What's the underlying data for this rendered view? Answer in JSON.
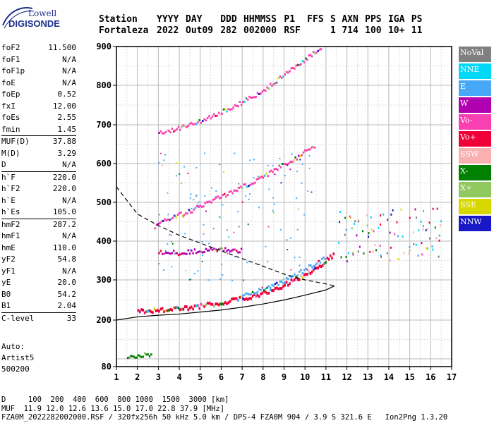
{
  "logo": {
    "line1": "Lowell",
    "line2": "DIGISONDE"
  },
  "header": {
    "labels": [
      "Station",
      "YYYY",
      "DAY",
      "DDD",
      "HHMMSS",
      "P1",
      "FFS",
      "S",
      "AXN",
      "PPS",
      "IGA",
      "PS"
    ],
    "values": [
      "Fortaleza",
      "2022",
      "Out09",
      "282",
      "002000",
      "RSF",
      "",
      "1",
      "714",
      "100",
      "10+",
      "11"
    ]
  },
  "params_groups": [
    [
      [
        "foF2",
        "11.500"
      ],
      [
        "foF1",
        "N/A"
      ],
      [
        "foF1p",
        "N/A"
      ],
      [
        "foE",
        "N/A"
      ],
      [
        "foEp",
        "0.52"
      ],
      [
        "fxI",
        "12.00"
      ],
      [
        "foEs",
        "2.55"
      ],
      [
        "fmin",
        "1.45"
      ]
    ],
    [
      [
        "MUF(D)",
        "37.88"
      ],
      [
        "M(D)",
        "3.29"
      ],
      [
        "D",
        "N/A"
      ]
    ],
    [
      [
        "h`F",
        "220.0"
      ],
      [
        "h`F2",
        "220.0"
      ],
      [
        "h`E",
        "N/A"
      ],
      [
        "h`Es",
        "105.0"
      ]
    ],
    [
      [
        "hmF2",
        "287.2"
      ],
      [
        "hmF1",
        "N/A"
      ],
      [
        "hmE",
        "110.0"
      ],
      [
        "yF2",
        "54.8"
      ],
      [
        "yF1",
        "N/A"
      ],
      [
        "yE",
        "20.0"
      ],
      [
        "B0",
        "54.2"
      ],
      [
        "B1",
        "2.04"
      ]
    ],
    [
      [
        "C-level",
        "33"
      ]
    ]
  ],
  "auto": {
    "line1": "Auto:",
    "line2": "Artist5",
    "line3": "500200"
  },
  "legend": [
    {
      "label": "NoVal",
      "color": "#808080"
    },
    {
      "label": "NNE",
      "color": "#00d8f8"
    },
    {
      "label": "E",
      "color": "#48a8f8"
    },
    {
      "label": "W",
      "color": "#b000b0"
    },
    {
      "label": "Vo-",
      "color": "#f840b0"
    },
    {
      "label": "Vo+",
      "color": "#f00038"
    },
    {
      "label": "SSW",
      "color": "#f8b0b0"
    },
    {
      "label": "X-",
      "color": "#008000"
    },
    {
      "label": "X+",
      "color": "#90c860"
    },
    {
      "label": "SSE",
      "color": "#d8d800"
    },
    {
      "label": "NNW",
      "color": "#1818c8"
    }
  ],
  "chart_data": {
    "type": "scatter",
    "xlim": [
      1,
      17
    ],
    "ylim": [
      80,
      900
    ],
    "x_ticks": [
      1,
      2,
      3,
      4,
      5,
      6,
      7,
      8,
      9,
      10,
      11,
      12,
      13,
      14,
      15,
      16,
      17
    ],
    "y_ticks": [
      80,
      200,
      300,
      400,
      500,
      600,
      700,
      800,
      900
    ],
    "grid": true,
    "traces": [
      {
        "name": "F2 O-trace",
        "color": "#f00038",
        "points": [
          [
            2,
            225
          ],
          [
            3,
            228
          ],
          [
            4,
            232
          ],
          [
            5,
            238
          ],
          [
            6,
            246
          ],
          [
            7,
            257
          ],
          [
            8,
            270
          ],
          [
            9,
            290
          ],
          [
            10,
            318
          ],
          [
            10.8,
            345
          ],
          [
            11.4,
            370
          ]
        ]
      },
      {
        "name": "F2 X-trace",
        "color": "#48a8f8",
        "points": [
          [
            7,
            265
          ],
          [
            8,
            280
          ],
          [
            9,
            300
          ],
          [
            10,
            330
          ],
          [
            11,
            362
          ]
        ]
      },
      {
        "name": "2F multiple",
        "color": "#f840b0",
        "points": [
          [
            2.8,
            440
          ],
          [
            3.5,
            462
          ],
          [
            4.5,
            480
          ],
          [
            5.5,
            505
          ],
          [
            6.5,
            530
          ],
          [
            7.5,
            555
          ],
          [
            8.5,
            585
          ],
          [
            9.5,
            615
          ],
          [
            10.5,
            650
          ]
        ]
      },
      {
        "name": "3F multiple",
        "color": "#f840b0",
        "points": [
          [
            3,
            680
          ],
          [
            4,
            695
          ],
          [
            5,
            712
          ],
          [
            6,
            735
          ],
          [
            7,
            760
          ],
          [
            8,
            790
          ],
          [
            9,
            830
          ],
          [
            10,
            870
          ],
          [
            10.8,
            900
          ]
        ]
      },
      {
        "name": "Es",
        "color": "#008000",
        "points": [
          [
            1.5,
            105
          ],
          [
            2,
            110
          ],
          [
            2.7,
            115
          ]
        ]
      },
      {
        "name": "Es multiple",
        "color": "#b000b0",
        "points": [
          [
            3,
            375
          ],
          [
            4,
            372
          ],
          [
            5,
            378
          ],
          [
            6,
            380
          ],
          [
            7,
            378
          ]
        ]
      }
    ],
    "profile_dashed": [
      [
        1,
        540
      ],
      [
        1.5,
        505
      ],
      [
        2,
        470
      ],
      [
        3,
        440
      ],
      [
        4,
        415
      ],
      [
        5,
        395
      ],
      [
        6,
        375
      ],
      [
        7,
        355
      ],
      [
        8,
        335
      ],
      [
        9,
        315
      ],
      [
        10,
        300
      ],
      [
        11,
        290
      ],
      [
        11.4,
        285
      ]
    ],
    "profile_solid": [
      [
        1,
        200
      ],
      [
        2,
        208
      ],
      [
        3,
        212
      ],
      [
        4,
        215
      ],
      [
        5,
        220
      ],
      [
        6,
        225
      ],
      [
        7,
        232
      ],
      [
        8,
        240
      ],
      [
        9,
        250
      ],
      [
        10,
        262
      ],
      [
        11,
        275
      ],
      [
        11.4,
        285
      ]
    ]
  },
  "footer": {
    "line1": "D     100  200  400  600  800 1000  1500  3000 [km]",
    "line2": "MUF  11.9 12.0 12.6 13.6 15.0 17.0 22.8 37.9 [MHz]",
    "line3": "FZA0M_2022282002000.RSF / 320fx256h 50 kHz 5.0 km / DPS-4 FZA0M 904 / 3.9 S 321.6 E   Ion2Png 1.3.20"
  }
}
